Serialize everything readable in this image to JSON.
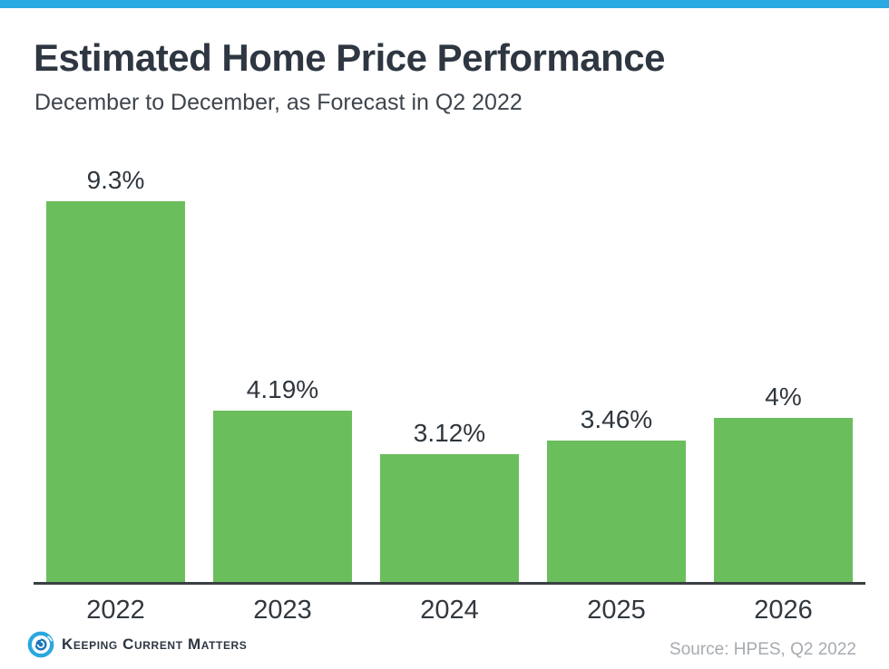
{
  "accent_color": "#29a9e1",
  "header": {
    "title": "Estimated Home Price Performance",
    "subtitle": "December to December, as Forecast in Q2 2022"
  },
  "chart_data": {
    "type": "bar",
    "categories": [
      "2022",
      "2023",
      "2024",
      "2025",
      "2026"
    ],
    "values": [
      9.3,
      4.19,
      3.12,
      3.46,
      4
    ],
    "value_labels": [
      "9.3%",
      "4.19%",
      "3.12%",
      "3.46%",
      "4%"
    ],
    "title": "Estimated Home Price Performance",
    "xlabel": "",
    "ylabel": "",
    "ylim": [
      0,
      10
    ],
    "grid": false,
    "legend": false,
    "bar_color": "#6bbe5c",
    "axis_line_color": "#3a3f44"
  },
  "footer": {
    "logo_text": "Keeping Current Matters",
    "logo_icon": "kcm-swirl-icon",
    "logo_icon_colors": {
      "outer": "#2ba7df",
      "inner": "#1b75bb"
    },
    "source": "Source: HPES, Q2 2022"
  }
}
